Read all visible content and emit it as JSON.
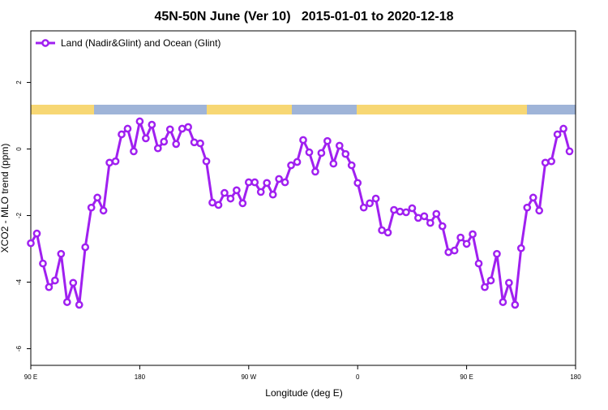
{
  "chart_data": {
    "type": "line",
    "title": "45N-50N June (Ver 10)   2015-01-01 to 2020-12-18",
    "xlabel": "Longitude (deg E)",
    "ylabel": "XCO2 - MLO trend (ppm)",
    "x": [
      90,
      95,
      100,
      105,
      110,
      115,
      120,
      125,
      130,
      135,
      140,
      145,
      150,
      155,
      160,
      165,
      170,
      175,
      180,
      185,
      190,
      195,
      200,
      205,
      210,
      215,
      220,
      225,
      230,
      235,
      240,
      245,
      250,
      255,
      260,
      265,
      270,
      275,
      280,
      285,
      290,
      295,
      300,
      305,
      310,
      315,
      320,
      325,
      330,
      335,
      340,
      345,
      350,
      355,
      360,
      365,
      370,
      375,
      380,
      385,
      390,
      395,
      400,
      405,
      410,
      415,
      420,
      425,
      430,
      435,
      440,
      445,
      450,
      455,
      460,
      465,
      470,
      475,
      480,
      485,
      490,
      495,
      500,
      505,
      510,
      515,
      520,
      525,
      530,
      535
    ],
    "series": [
      {
        "name": "Land (Nadir&Glint) and Ocean (Glint)",
        "color": "#a020f0",
        "values": [
          -2.83,
          -2.54,
          -3.44,
          -4.15,
          -3.95,
          -3.15,
          -4.6,
          -4.02,
          -4.68,
          -2.95,
          -1.76,
          -1.46,
          -1.85,
          -0.41,
          -0.37,
          0.44,
          0.61,
          -0.07,
          0.83,
          0.32,
          0.73,
          0.02,
          0.22,
          0.59,
          0.15,
          0.61,
          0.66,
          0.2,
          0.17,
          -0.37,
          -1.61,
          -1.68,
          -1.32,
          -1.49,
          -1.24,
          -1.63,
          -1.0,
          -1.0,
          -1.29,
          -1.02,
          -1.37,
          -0.9,
          -1.0,
          -0.49,
          -0.39,
          0.27,
          -0.1,
          -0.68,
          -0.12,
          0.24,
          -0.44,
          0.1,
          -0.15,
          -0.49,
          -1.02,
          -1.76,
          -1.63,
          -1.49,
          -2.44,
          -2.51,
          -1.83,
          -1.88,
          -1.9,
          -1.78,
          -2.07,
          -2.02,
          -2.22,
          -1.95,
          -2.32,
          -3.1,
          -3.05,
          -2.66,
          -2.85,
          -2.56,
          -3.44,
          -4.15,
          -3.95,
          -3.15,
          -4.6,
          -4.02,
          -4.68,
          -2.98,
          -1.76,
          -1.46,
          -1.85,
          -0.41,
          -0.37,
          0.44,
          0.61,
          -0.07
        ]
      }
    ],
    "xlim": [
      90,
      540
    ],
    "xticks": [
      {
        "value": 90,
        "label": "90 E"
      },
      180,
      {
        "value": 270,
        "label": "90 W"
      },
      {
        "value": 360,
        "label": "0"
      },
      {
        "value": 450,
        "label": "90 E"
      },
      {
        "value": 540,
        "label": "180"
      }
    ],
    "ylim": [
      -6.5,
      3.55
    ],
    "yticks": [
      -6,
      -4,
      -2,
      0,
      2
    ],
    "legend": "top-left"
  }
}
